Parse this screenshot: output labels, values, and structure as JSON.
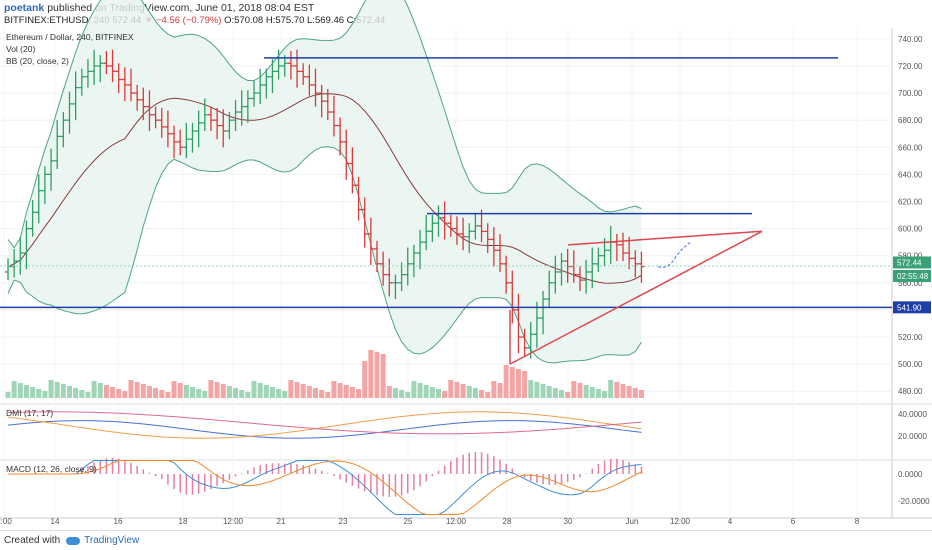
{
  "header": {
    "author": "poetank",
    "published": "published on TradingView.com, June 01, 2018 08:04 EST",
    "symbol": "BITFINEX:ETHUSD, 240",
    "last": "572.44",
    "change": "▼ −4.56 (−0.79%)",
    "open": "O:570.08",
    "high": "H:575.70",
    "low": "L:569.46",
    "close": "C:572.44"
  },
  "legend": {
    "title": "Ethereum / Dollar, 240, BITFINEX",
    "vol": "Vol (20)",
    "bb": "BB (20, close, 2)",
    "dmi": "DMI (17, 17)",
    "macd": "MACD (12, 26, close, 9)"
  },
  "footer": {
    "created": "Created with",
    "brand": "TradingView"
  },
  "colors": {
    "up": "#2e9e63",
    "down": "#d83a3a",
    "band": "#4fa38a",
    "basis": "#8b3a3a",
    "blue_line": "#1f3fa8",
    "red_line": "#e0464f",
    "price_tag": "#3aa176",
    "level_tag": "#1f3fa8"
  },
  "chart_data": {
    "type": "candlestick",
    "price_axis": {
      "ticks": [
        "740.00",
        "720.00",
        "700.00",
        "680.00",
        "660.00",
        "640.00",
        "620.00",
        "600.00",
        "580.00",
        "560.00",
        "540.00",
        "520.00",
        "500.00",
        "480.00"
      ],
      "range": [
        475,
        748
      ]
    },
    "time_axis": [
      "2:00",
      "14",
      "16",
      "18",
      "12:00",
      "21",
      "23",
      "25",
      "12:00",
      "28",
      "30",
      "Jun",
      "12:00",
      "4",
      "6",
      "8"
    ],
    "last_price": "572.44",
    "countdown": "02:55:48",
    "level_label": "541.90",
    "dmi_ticks": [
      "40.0000",
      "20.0000"
    ],
    "macd_ticks": [
      "0.0000",
      "-20.0000"
    ],
    "close": [
      572,
      576,
      582,
      600,
      612,
      628,
      640,
      650,
      668,
      680,
      692,
      704,
      712,
      716,
      720,
      722,
      720,
      716,
      710,
      706,
      700,
      695,
      690,
      684,
      680,
      675,
      670,
      664,
      660,
      666,
      672,
      678,
      684,
      680,
      676,
      672,
      680,
      686,
      690,
      696,
      700,
      706,
      712,
      716,
      720,
      722,
      720,
      716,
      712,
      706,
      700,
      694,
      686,
      676,
      664,
      648,
      632,
      614,
      596,
      585,
      574,
      566,
      560,
      560,
      566,
      574,
      582,
      590,
      598,
      604,
      608,
      604,
      600,
      596,
      594,
      598,
      602,
      598,
      592,
      584,
      574,
      560,
      540,
      520,
      512,
      522,
      534,
      548,
      560,
      568,
      576,
      572,
      566,
      562,
      568,
      574,
      580,
      584,
      590,
      588,
      582,
      578,
      574,
      572
    ]
  }
}
